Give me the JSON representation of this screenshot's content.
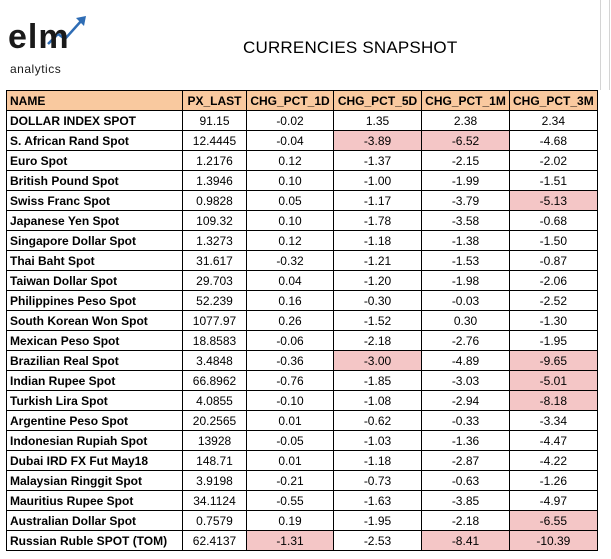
{
  "header": {
    "logo_text": "elm",
    "logo_subtext": "analytics",
    "title": "CURRENCIES SNAPSHOT"
  },
  "colors": {
    "header_fill": "#f9c99f",
    "highlight_fill": "#f4c6c6"
  },
  "table": {
    "columns": [
      "NAME",
      "PX_LAST",
      "CHG_PCT_1D",
      "CHG_PCT_5D",
      "CHG_PCT_1M",
      "CHG_PCT_3M"
    ],
    "rows": [
      {
        "name": "DOLLAR INDEX SPOT",
        "px_last": "91.15",
        "chg_1d": "-0.02",
        "chg_5d": "1.35",
        "chg_1m": "2.38",
        "chg_3m": "2.34",
        "hl": []
      },
      {
        "name": "S. African Rand Spot",
        "px_last": "12.4445",
        "chg_1d": "-0.04",
        "chg_5d": "-3.89",
        "chg_1m": "-6.52",
        "chg_3m": "-4.68",
        "hl": [
          "chg_5d",
          "chg_1m"
        ]
      },
      {
        "name": "Euro Spot",
        "px_last": "1.2176",
        "chg_1d": "0.12",
        "chg_5d": "-1.37",
        "chg_1m": "-2.15",
        "chg_3m": "-2.02",
        "hl": []
      },
      {
        "name": "British Pound Spot",
        "px_last": "1.3946",
        "chg_1d": "0.10",
        "chg_5d": "-1.00",
        "chg_1m": "-1.99",
        "chg_3m": "-1.51",
        "hl": []
      },
      {
        "name": "Swiss Franc Spot",
        "px_last": "0.9828",
        "chg_1d": "0.05",
        "chg_5d": "-1.17",
        "chg_1m": "-3.79",
        "chg_3m": "-5.13",
        "hl": [
          "chg_3m"
        ]
      },
      {
        "name": "Japanese Yen Spot",
        "px_last": "109.32",
        "chg_1d": "0.10",
        "chg_5d": "-1.78",
        "chg_1m": "-3.58",
        "chg_3m": "-0.68",
        "hl": []
      },
      {
        "name": "Singapore Dollar Spot",
        "px_last": "1.3273",
        "chg_1d": "0.12",
        "chg_5d": "-1.18",
        "chg_1m": "-1.38",
        "chg_3m": "-1.50",
        "hl": []
      },
      {
        "name": "Thai Baht Spot",
        "px_last": "31.617",
        "chg_1d": "-0.32",
        "chg_5d": "-1.21",
        "chg_1m": "-1.53",
        "chg_3m": "-0.87",
        "hl": []
      },
      {
        "name": "Taiwan Dollar Spot",
        "px_last": "29.703",
        "chg_1d": "0.04",
        "chg_5d": "-1.20",
        "chg_1m": "-1.98",
        "chg_3m": "-2.06",
        "hl": []
      },
      {
        "name": "Philippines Peso Spot",
        "px_last": "52.239",
        "chg_1d": "0.16",
        "chg_5d": "-0.30",
        "chg_1m": "-0.03",
        "chg_3m": "-2.52",
        "hl": []
      },
      {
        "name": "South Korean Won Spot",
        "px_last": "1077.97",
        "chg_1d": "0.26",
        "chg_5d": "-1.52",
        "chg_1m": "0.30",
        "chg_3m": "-1.30",
        "hl": []
      },
      {
        "name": "Mexican Peso Spot",
        "px_last": "18.8583",
        "chg_1d": "-0.06",
        "chg_5d": "-2.18",
        "chg_1m": "-2.76",
        "chg_3m": "-1.95",
        "hl": []
      },
      {
        "name": "Brazilian Real Spot",
        "px_last": "3.4848",
        "chg_1d": "-0.36",
        "chg_5d": "-3.00",
        "chg_1m": "-4.89",
        "chg_3m": "-9.65",
        "hl": [
          "chg_5d",
          "chg_3m"
        ]
      },
      {
        "name": "Indian Rupee Spot",
        "px_last": "66.8962",
        "chg_1d": "-0.76",
        "chg_5d": "-1.85",
        "chg_1m": "-3.03",
        "chg_3m": "-5.01",
        "hl": [
          "chg_3m"
        ]
      },
      {
        "name": "Turkish Lira Spot",
        "px_last": "4.0855",
        "chg_1d": "-0.10",
        "chg_5d": "-1.08",
        "chg_1m": "-2.94",
        "chg_3m": "-8.18",
        "hl": [
          "chg_3m"
        ]
      },
      {
        "name": "Argentine Peso Spot",
        "px_last": "20.2565",
        "chg_1d": "0.01",
        "chg_5d": "-0.62",
        "chg_1m": "-0.33",
        "chg_3m": "-3.34",
        "hl": []
      },
      {
        "name": "Indonesian Rupiah Spot",
        "px_last": "13928",
        "chg_1d": "-0.05",
        "chg_5d": "-1.03",
        "chg_1m": "-1.36",
        "chg_3m": "-4.47",
        "hl": []
      },
      {
        "name": "Dubai IRD FX Fut  May18",
        "px_last": "148.71",
        "chg_1d": "0.01",
        "chg_5d": "-1.18",
        "chg_1m": "-2.87",
        "chg_3m": "-4.22",
        "hl": []
      },
      {
        "name": "Malaysian Ringgit Spot",
        "px_last": "3.9198",
        "chg_1d": "-0.21",
        "chg_5d": "-0.73",
        "chg_1m": "-0.63",
        "chg_3m": "-1.26",
        "hl": []
      },
      {
        "name": "Mauritius Rupee Spot",
        "px_last": "34.1124",
        "chg_1d": "-0.55",
        "chg_5d": "-1.63",
        "chg_1m": "-3.85",
        "chg_3m": "-4.97",
        "hl": []
      },
      {
        "name": "Australian Dollar Spot",
        "px_last": "0.7579",
        "chg_1d": "0.19",
        "chg_5d": "-1.95",
        "chg_1m": "-2.18",
        "chg_3m": "-6.55",
        "hl": [
          "chg_3m"
        ]
      },
      {
        "name": "Russian Ruble SPOT (TOM)",
        "px_last": "62.4137",
        "chg_1d": "-1.31",
        "chg_5d": "-2.53",
        "chg_1m": "-8.41",
        "chg_3m": "-10.39",
        "hl": [
          "chg_1d",
          "chg_1m",
          "chg_3m"
        ]
      }
    ]
  }
}
